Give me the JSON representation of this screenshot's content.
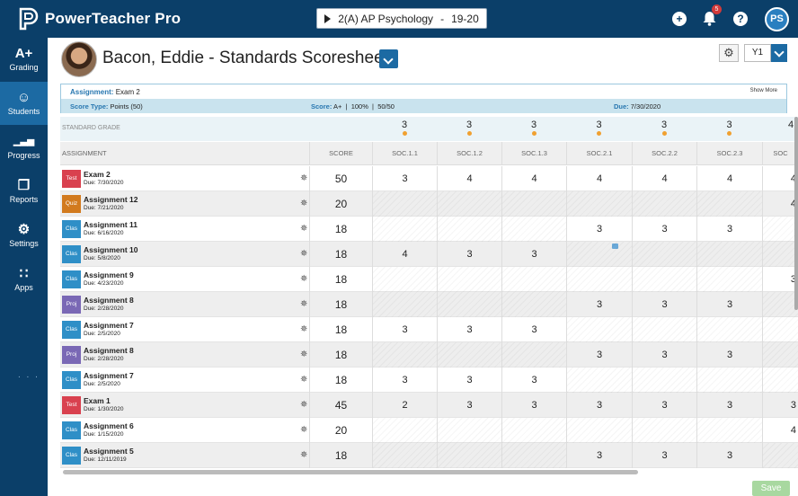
{
  "app": {
    "brand": "PowerTeacher Pro",
    "class_selector": "2(A) AP Psychology",
    "class_term": "19-20",
    "notification_count": "5",
    "user_initials": "PS"
  },
  "sidebar": {
    "items": [
      {
        "label": "Grading",
        "icon": "A+"
      },
      {
        "label": "Students",
        "icon": "☺"
      },
      {
        "label": "Progress",
        "icon": "▁▃▅"
      },
      {
        "label": "Reports",
        "icon": "❐"
      },
      {
        "label": "Settings",
        "icon": "⚙"
      },
      {
        "label": "Apps",
        "icon": "∷"
      }
    ],
    "active": "Students",
    "more": ". . ."
  },
  "page": {
    "title": "Bacon, Eddie - Standards Scoresheet",
    "term": "Y1",
    "save_label": "Save"
  },
  "assignment_info": {
    "assignment_label": "Assignment:",
    "assignment_value": "Exam 2",
    "show_more": "Show More",
    "score_type_label": "Score Type:",
    "score_type_value": "Points (50)",
    "score_label": "Score:",
    "score_value": "A+",
    "percent": "100%",
    "points": "50/50",
    "due_label": "Due:",
    "due_value": "7/30/2020"
  },
  "standard_grade": {
    "label": "STANDARD GRADE",
    "values": [
      "3",
      "3",
      "3",
      "3",
      "3",
      "3",
      "4"
    ]
  },
  "columns": {
    "assignment": "ASSIGNMENT",
    "score": "SCORE",
    "standards": [
      "SOC.1.1",
      "SOC.1.2",
      "SOC.1.3",
      "SOC.2.1",
      "SOC.2.2",
      "SOC.2.3",
      "SOC"
    ]
  },
  "colors": {
    "test": "#d9414f",
    "quiz": "#d27a1e",
    "class": "#2f8fc7",
    "project": "#7a68b5"
  },
  "rows": [
    {
      "tag": "Test",
      "type": "test",
      "name": "Exam 2",
      "due": "Due: 7/30/2020",
      "score": "50",
      "cells": [
        "3",
        "4",
        "4",
        "4",
        "4",
        "4",
        "4"
      ]
    },
    {
      "tag": "Quiz",
      "type": "quiz",
      "name": "Assignment 12",
      "due": "Due: 7/21/2020",
      "score": "20",
      "cells": [
        "",
        "",
        "",
        "",
        "",
        "",
        "4"
      ]
    },
    {
      "tag": "Clas",
      "type": "class",
      "name": "Assignment 11",
      "due": "Due: 6/16/2020",
      "score": "18",
      "cells": [
        "",
        "",
        "",
        "3",
        "3",
        "3",
        ""
      ]
    },
    {
      "tag": "Clas",
      "type": "class",
      "name": "Assignment 10",
      "due": "Due: 5/8/2020",
      "score": "18",
      "cells": [
        "4",
        "3",
        "3",
        "",
        "",
        "",
        ""
      ]
    },
    {
      "tag": "Clas",
      "type": "class",
      "name": "Assignment 9",
      "due": "Due: 4/23/2020",
      "score": "18",
      "cells": [
        "",
        "",
        "",
        "",
        "",
        "",
        "3"
      ]
    },
    {
      "tag": "Proj",
      "type": "project",
      "name": "Assignment 8",
      "due": "Due: 2/28/2020",
      "score": "18",
      "cells": [
        "",
        "",
        "",
        "3",
        "3",
        "3",
        ""
      ]
    },
    {
      "tag": "Clas",
      "type": "class",
      "name": "Assignment 7",
      "due": "Due: 2/5/2020",
      "score": "18",
      "cells": [
        "3",
        "3",
        "3",
        "",
        "",
        "",
        ""
      ]
    },
    {
      "tag": "Proj",
      "type": "project",
      "name": "Assignment 8",
      "due": "Due: 2/28/2020",
      "score": "18",
      "cells": [
        "",
        "",
        "",
        "3",
        "3",
        "3",
        ""
      ]
    },
    {
      "tag": "Clas",
      "type": "class",
      "name": "Assignment 7",
      "due": "Due: 2/5/2020",
      "score": "18",
      "cells": [
        "3",
        "3",
        "3",
        "",
        "",
        "",
        ""
      ]
    },
    {
      "tag": "Test",
      "type": "test",
      "name": "Exam 1",
      "due": "Due: 1/30/2020",
      "score": "45",
      "cells": [
        "2",
        "3",
        "3",
        "3",
        "3",
        "3",
        "3"
      ]
    },
    {
      "tag": "Clas",
      "type": "class",
      "name": "Assignment 6",
      "due": "Due: 1/15/2020",
      "score": "20",
      "cells": [
        "",
        "",
        "",
        "",
        "",
        "",
        "4"
      ]
    },
    {
      "tag": "Clas",
      "type": "class",
      "name": "Assignment 5",
      "due": "Due: 12/11/2019",
      "score": "18",
      "cells": [
        "",
        "",
        "",
        "3",
        "3",
        "3",
        ""
      ]
    }
  ]
}
